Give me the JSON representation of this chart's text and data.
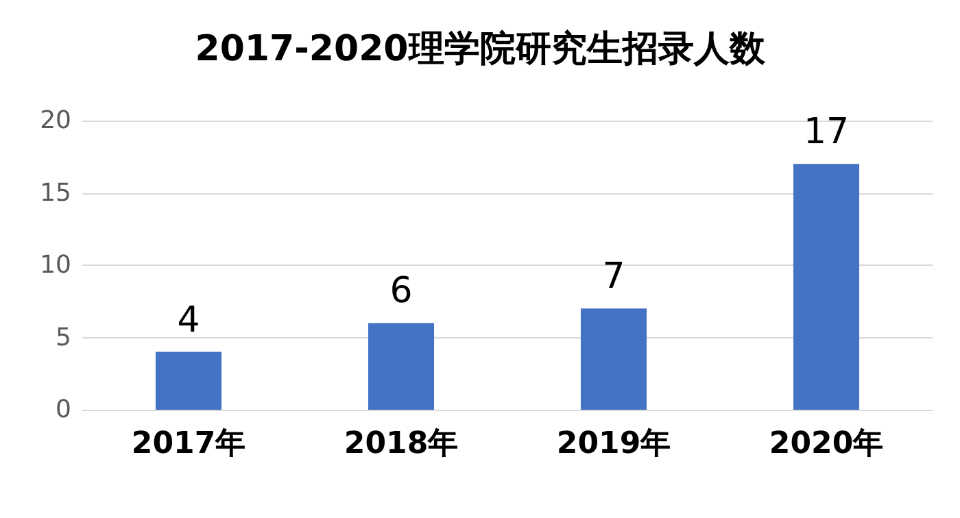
{
  "chart_data": {
    "type": "bar",
    "title": "2017-2020理学院研究生招录人数",
    "categories": [
      "2017年",
      "2018年",
      "2019年",
      "2020年"
    ],
    "values": [
      4,
      6,
      7,
      17
    ],
    "color": "#4472c4",
    "ylim": [
      0,
      20
    ],
    "yticks": [
      0,
      5,
      10,
      15,
      20
    ],
    "grid": "y",
    "data_labels": true
  }
}
